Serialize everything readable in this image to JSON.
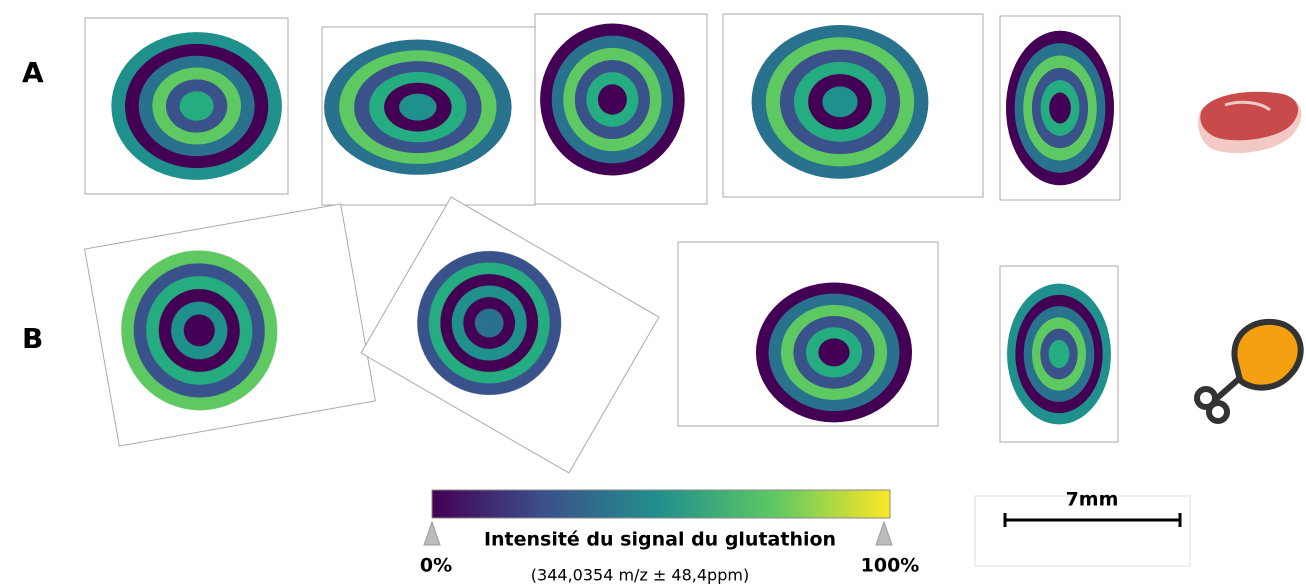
{
  "panels": [
    {
      "label": "A"
    },
    {
      "label": "B"
    }
  ],
  "colorbar": {
    "title": "Intensité du signal du glutathion",
    "min_label": "0%",
    "max_label": "100%",
    "subtitle": "(344,0354 m/z ± 48,4ppm)"
  },
  "scale_bar": {
    "label": "7mm"
  }
}
